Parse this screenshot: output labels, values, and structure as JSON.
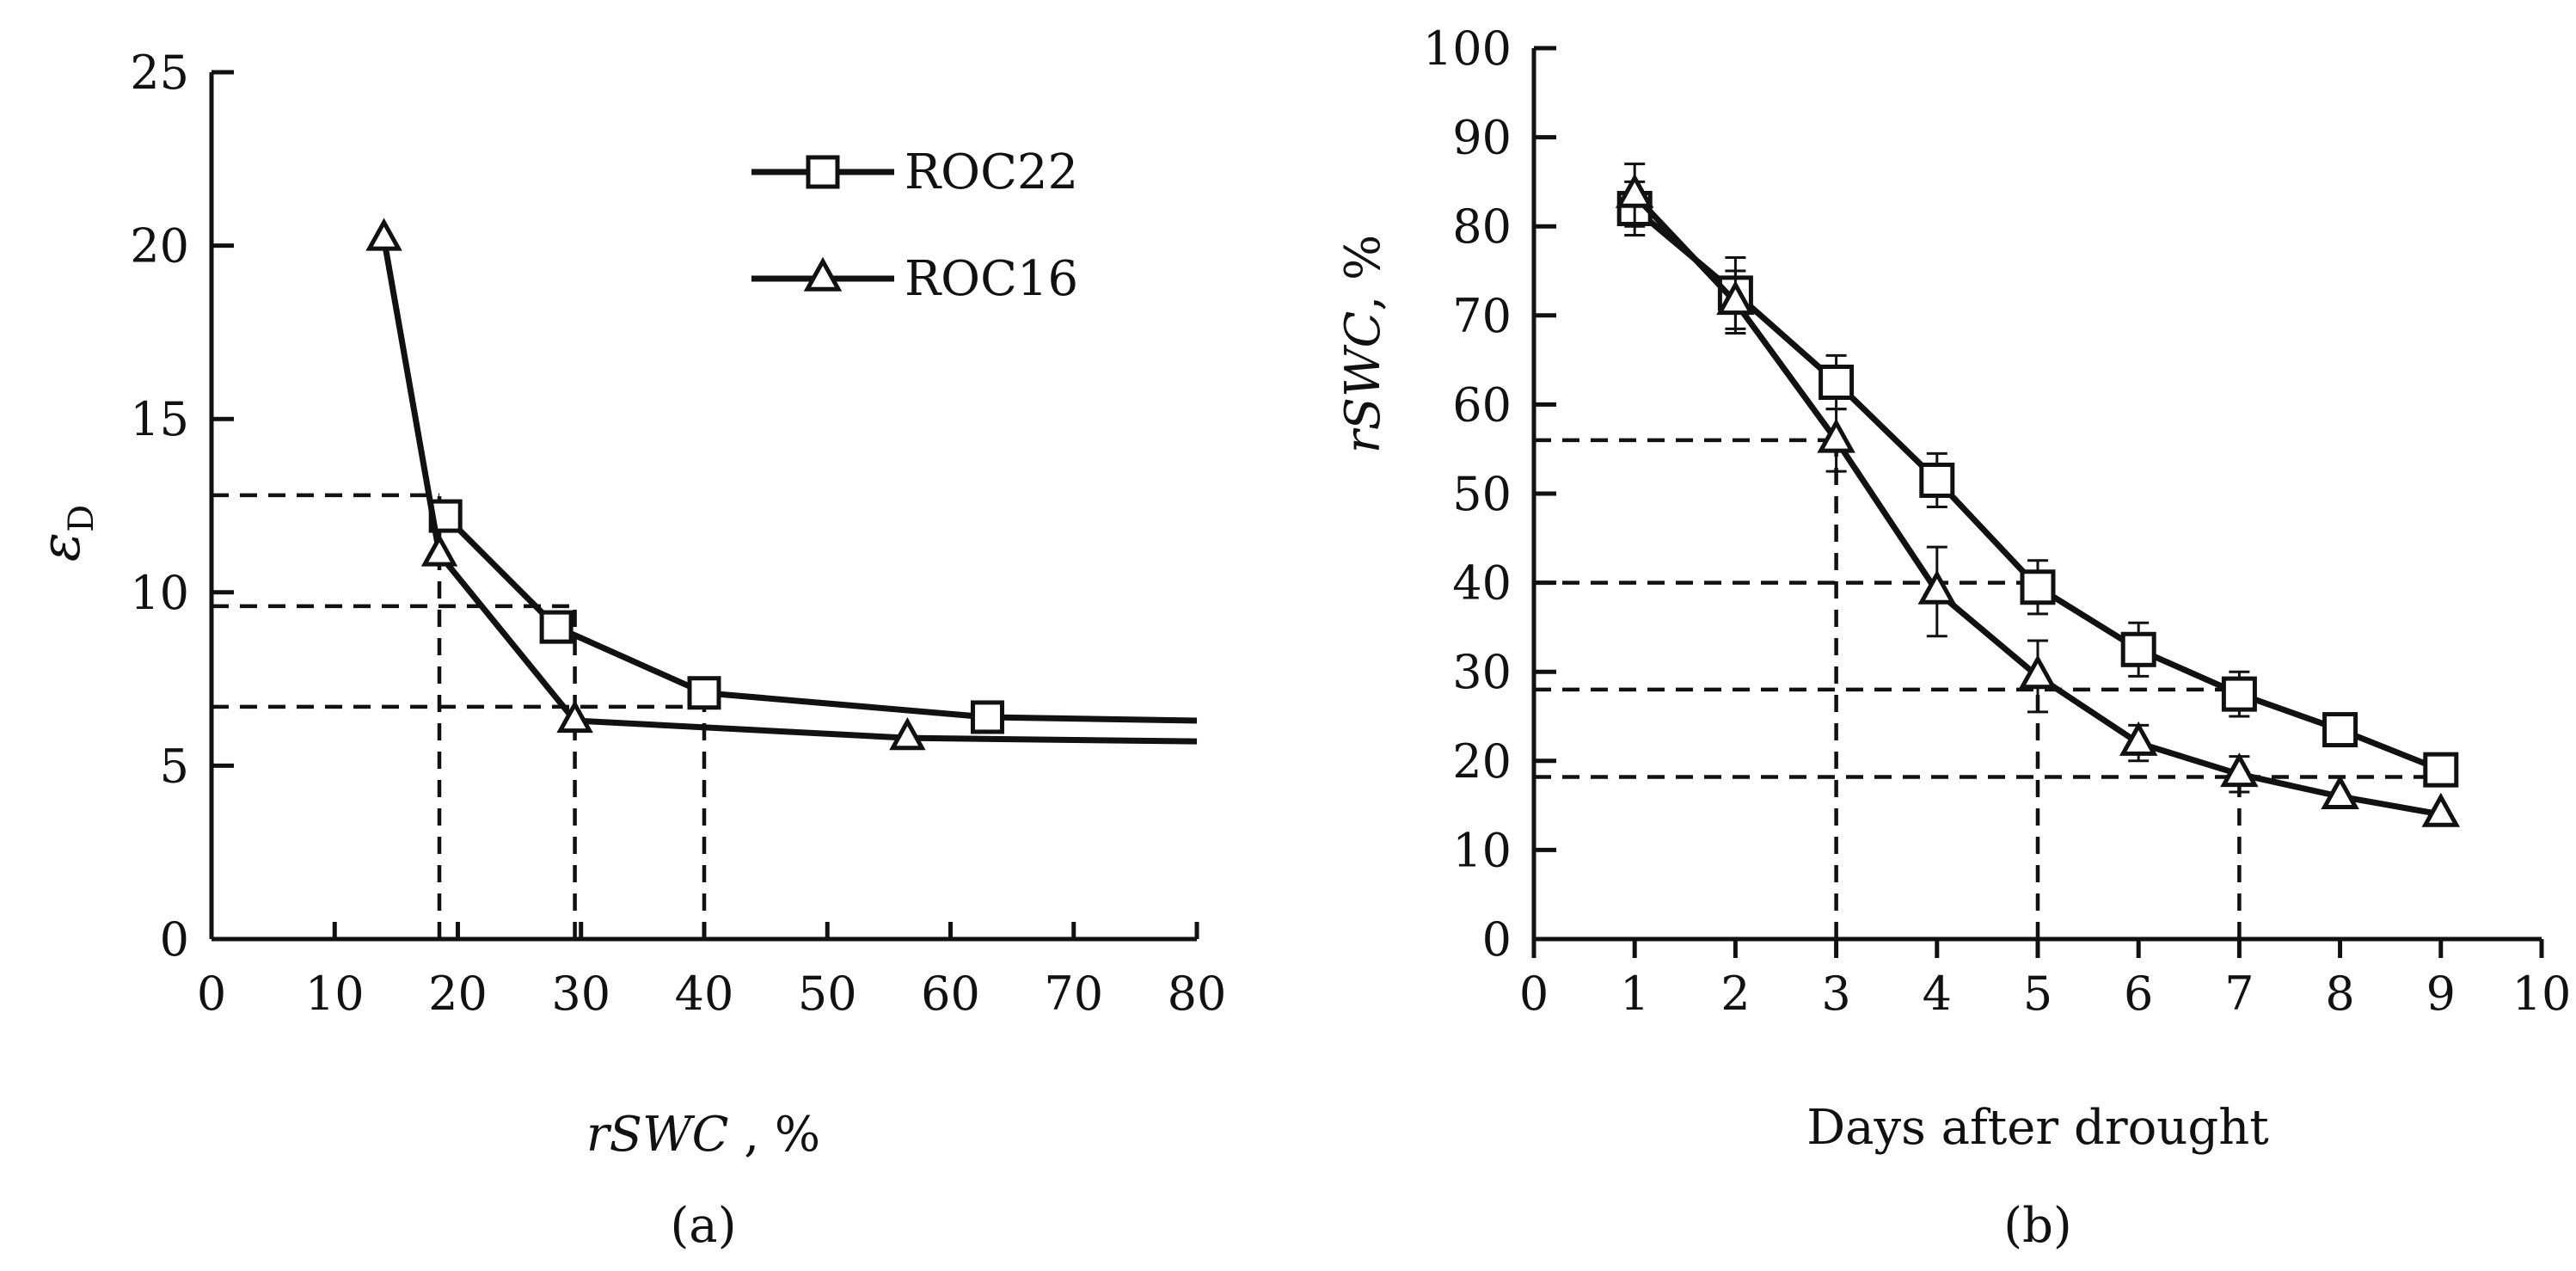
{
  "chart_data": [
    {
      "type": "line",
      "panel_label": "(a)",
      "xlabel_italic": "rSWC",
      "xlabel_suffix": " , %",
      "ylabel_base": "ε",
      "ylabel_sub": "D",
      "xlim": [
        0,
        80
      ],
      "ylim": [
        0,
        25
      ],
      "x_ticks": [
        0,
        10,
        20,
        30,
        40,
        50,
        60,
        70,
        80
      ],
      "y_ticks": [
        0,
        5,
        10,
        15,
        20,
        25
      ],
      "legend_position": "top-right",
      "series": [
        {
          "name": "ROC22",
          "marker": "square",
          "points": [
            [
              19,
              12.2
            ],
            [
              28,
              9.0
            ],
            [
              40,
              7.1
            ],
            [
              63,
              6.4
            ]
          ],
          "curve_end": [
            80,
            6.3
          ]
        },
        {
          "name": "ROC16",
          "marker": "triangle",
          "points": [
            [
              14,
              20.2
            ],
            [
              18.5,
              11.1
            ],
            [
              29.5,
              6.3
            ],
            [
              56.5,
              5.8
            ]
          ],
          "curve_end": [
            80,
            5.7
          ]
        }
      ],
      "reference_lines": {
        "horizontal_y": [
          12.8,
          9.6,
          6.7
        ],
        "horizontal_x_end": [
          18.5,
          29.5,
          40
        ],
        "vertical_x": [
          18.5,
          29.5,
          40
        ],
        "vertical_y_top": [
          12.8,
          9.6,
          6.7
        ]
      }
    },
    {
      "type": "line",
      "panel_label": "(b)",
      "xlabel": "Days after drought",
      "ylabel_italic": "rSWC",
      "ylabel_suffix": ", %",
      "xlim": [
        0,
        10
      ],
      "ylim": [
        0,
        100
      ],
      "x_ticks": [
        0,
        1,
        2,
        3,
        4,
        5,
        6,
        7,
        8,
        9,
        10
      ],
      "y_ticks": [
        0,
        10,
        20,
        30,
        40,
        50,
        60,
        70,
        80,
        90,
        100
      ],
      "series": [
        {
          "name": "ROC22",
          "marker": "square",
          "x": [
            1,
            2,
            3,
            4,
            5,
            6,
            7,
            8,
            9
          ],
          "y": [
            82,
            72.5,
            62.5,
            51.5,
            39.5,
            32.5,
            27.5,
            23.5,
            19
          ],
          "err": [
            3,
            4,
            3,
            3,
            3,
            3,
            2.5,
            0,
            0
          ]
        },
        {
          "name": "ROC16",
          "marker": "triangle",
          "x": [
            1,
            2,
            3,
            4,
            5,
            6,
            7,
            8,
            9
          ],
          "y": [
            83.5,
            71.5,
            56,
            39,
            29.5,
            22,
            18.5,
            16,
            14
          ],
          "err": [
            3.5,
            3.5,
            3.5,
            5,
            4,
            2,
            2,
            0,
            0
          ]
        }
      ],
      "reference_lines": {
        "horizontal_y": [
          56,
          40,
          28,
          18.2
        ],
        "horizontal_x_end": [
          3,
          5,
          7,
          9
        ],
        "vertical_x": [
          3,
          5,
          7
        ],
        "vertical_y_top": [
          56,
          28,
          18.2
        ]
      }
    }
  ]
}
